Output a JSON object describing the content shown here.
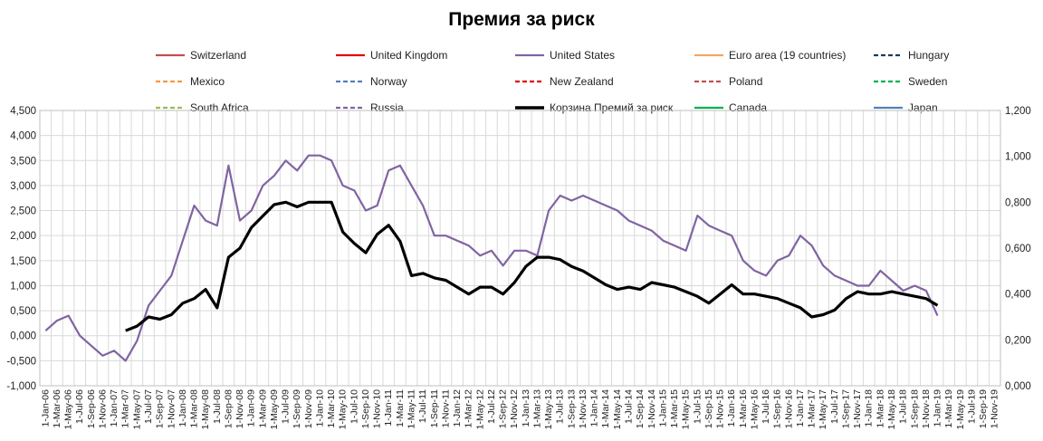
{
  "chart_data": {
    "type": "line",
    "title": "Премия за риск",
    "xlabel": "",
    "ylabel": "",
    "grid": true,
    "legend_placement": "top",
    "x_categories": [
      "1-Jan-06",
      "1-Mar-06",
      "1-May-06",
      "1-Jul-06",
      "1-Sep-06",
      "1-Nov-06",
      "1-Jan-07",
      "1-Mar-07",
      "1-May-07",
      "1-Jul-07",
      "1-Sep-07",
      "1-Nov-07",
      "1-Jan-08",
      "1-Mar-08",
      "1-May-08",
      "1-Jul-08",
      "1-Sep-08",
      "1-Nov-08",
      "1-Jan-09",
      "1-Mar-09",
      "1-May-09",
      "1-Jul-09",
      "1-Sep-09",
      "1-Nov-09",
      "1-Jan-10",
      "1-Mar-10",
      "1-May-10",
      "1-Jul-10",
      "1-Sep-10",
      "1-Nov-10",
      "1-Jan-11",
      "1-Mar-11",
      "1-May-11",
      "1-Jul-11",
      "1-Sep-11",
      "1-Nov-11",
      "1-Jan-12",
      "1-Mar-12",
      "1-May-12",
      "1-Jul-12",
      "1-Sep-12",
      "1-Nov-12",
      "1-Jan-13",
      "1-Mar-13",
      "1-May-13",
      "1-Jul-13",
      "1-Sep-13",
      "1-Nov-13",
      "1-Jan-14",
      "1-Mar-14",
      "1-May-14",
      "1-Jul-14",
      "1-Sep-14",
      "1-Nov-14",
      "1-Jan-15",
      "1-Mar-15",
      "1-May-15",
      "1-Jul-15",
      "1-Sep-15",
      "1-Nov-15",
      "1-Jan-16",
      "1-Mar-16",
      "1-May-16",
      "1-Jul-16",
      "1-Sep-16",
      "1-Nov-16",
      "1-Jan-17",
      "1-Mar-17",
      "1-May-17",
      "1-Jul-17",
      "1-Sep-17",
      "1-Nov-17",
      "1-Jan-18",
      "1-Mar-18",
      "1-May-18",
      "1-Jul-18",
      "1-Sep-18",
      "1-Nov-18",
      "1-Jan-19",
      "1-Mar-19",
      "1-May-19",
      "1-Jul-19",
      "1-Sep-19",
      "1-Nov-19"
    ],
    "y_left": {
      "min": -1.0,
      "max": 4.5,
      "ticks": [
        "4,500",
        "4,000",
        "3,500",
        "3,000",
        "2,500",
        "2,000",
        "1,500",
        "1,000",
        "0,500",
        "0,000",
        "-0,500",
        "-1,000"
      ]
    },
    "y_right": {
      "min": 0.0,
      "max": 1.2,
      "ticks": [
        "1,200",
        "1,000",
        "0,800",
        "0,600",
        "0,400",
        "0,200",
        "0,000"
      ]
    },
    "legend": [
      {
        "name": "Switzerland",
        "color": "#c0504d",
        "dash": false
      },
      {
        "name": "United Kingdom",
        "color": "#e00000",
        "dash": false
      },
      {
        "name": "United States",
        "color": "#8064a2",
        "dash": false
      },
      {
        "name": "Euro area (19 countries)",
        "color": "#f4a460",
        "dash": false
      },
      {
        "name": "Hungary",
        "color": "#1f3864",
        "dash": true
      },
      {
        "name": "Mexico",
        "color": "#f79646",
        "dash": true
      },
      {
        "name": "Norway",
        "color": "#4f81bd",
        "dash": true
      },
      {
        "name": "New Zealand",
        "color": "#e00000",
        "dash": true
      },
      {
        "name": "Poland",
        "color": "#c0504d",
        "dash": true
      },
      {
        "name": "Sweden",
        "color": "#00b050",
        "dash": true
      },
      {
        "name": "South Africa",
        "color": "#9bbb59",
        "dash": true
      },
      {
        "name": "Russia",
        "color": "#8064a2",
        "dash": true
      },
      {
        "name": "Корзина Премий за риск",
        "color": "#000000",
        "dash": false,
        "bold": true
      },
      {
        "name": "Canada",
        "color": "#00b050",
        "dash": false
      },
      {
        "name": "Japan",
        "color": "#4f81bd",
        "dash": false
      }
    ],
    "series": [
      {
        "name": "United States",
        "axis": "left",
        "color": "#8064a2",
        "x_index": [
          0,
          1,
          2,
          3,
          4,
          5,
          6,
          7,
          8,
          9,
          10,
          11,
          12,
          13,
          14,
          15,
          16,
          17,
          18,
          19,
          20,
          21,
          22,
          23,
          24,
          25,
          26,
          27,
          28,
          29,
          30,
          31,
          32,
          33,
          34,
          35,
          36,
          37,
          38,
          39,
          40,
          41,
          42,
          43,
          44,
          45,
          46,
          47,
          48,
          49,
          50,
          51,
          52,
          53,
          54,
          55,
          56,
          57,
          58,
          59,
          60,
          61,
          62,
          63,
          64,
          65,
          66,
          67,
          68,
          69,
          70,
          71,
          72,
          73,
          74,
          75,
          76,
          77,
          78
        ],
        "values": [
          0.1,
          0.3,
          0.4,
          0.0,
          -0.2,
          -0.4,
          -0.3,
          -0.5,
          -0.1,
          0.6,
          0.9,
          1.2,
          1.9,
          2.6,
          2.3,
          2.2,
          3.4,
          2.3,
          2.5,
          3.0,
          3.2,
          3.5,
          3.3,
          3.6,
          3.6,
          3.5,
          3.0,
          2.9,
          2.5,
          2.6,
          3.3,
          3.4,
          3.0,
          2.6,
          2.0,
          2.0,
          1.9,
          1.8,
          1.6,
          1.7,
          1.4,
          1.7,
          1.7,
          1.6,
          2.5,
          2.8,
          2.7,
          2.8,
          2.7,
          2.6,
          2.5,
          2.3,
          2.2,
          2.1,
          1.9,
          1.8,
          1.7,
          2.4,
          2.2,
          2.1,
          2.0,
          1.5,
          1.3,
          1.2,
          1.5,
          1.6,
          2.0,
          1.8,
          1.4,
          1.2,
          1.1,
          1.0,
          1.0,
          1.3,
          1.1,
          0.9,
          1.0,
          0.9,
          0.4
        ]
      },
      {
        "name": "Корзина Премий за риск",
        "axis": "right",
        "color": "#000000",
        "x_index": [
          7,
          8,
          9,
          10,
          11,
          12,
          13,
          14,
          15,
          16,
          17,
          18,
          19,
          20,
          21,
          22,
          23,
          24,
          25,
          26,
          27,
          28,
          29,
          30,
          31,
          32,
          33,
          34,
          35,
          36,
          37,
          38,
          39,
          40,
          41,
          42,
          43,
          44,
          45,
          46,
          47,
          48,
          49,
          50,
          51,
          52,
          53,
          54,
          55,
          56,
          57,
          58,
          59,
          60,
          61,
          62,
          63,
          64,
          65,
          66,
          67,
          68,
          69,
          70,
          71,
          72,
          73,
          74,
          75,
          76,
          77,
          78
        ],
        "values": [
          0.24,
          0.26,
          0.3,
          0.29,
          0.31,
          0.36,
          0.38,
          0.42,
          0.34,
          0.56,
          0.6,
          0.69,
          0.74,
          0.79,
          0.8,
          0.78,
          0.8,
          0.8,
          0.8,
          0.67,
          0.62,
          0.58,
          0.66,
          0.7,
          0.63,
          0.48,
          0.49,
          0.47,
          0.46,
          0.43,
          0.4,
          0.43,
          0.43,
          0.4,
          0.45,
          0.52,
          0.56,
          0.56,
          0.55,
          0.52,
          0.5,
          0.47,
          0.44,
          0.42,
          0.43,
          0.42,
          0.45,
          0.44,
          0.43,
          0.41,
          0.39,
          0.36,
          0.4,
          0.44,
          0.4,
          0.4,
          0.39,
          0.38,
          0.36,
          0.34,
          0.3,
          0.31,
          0.33,
          0.38,
          0.41,
          0.4,
          0.4,
          0.41,
          0.4,
          0.39,
          0.38,
          0.35
        ]
      }
    ]
  }
}
